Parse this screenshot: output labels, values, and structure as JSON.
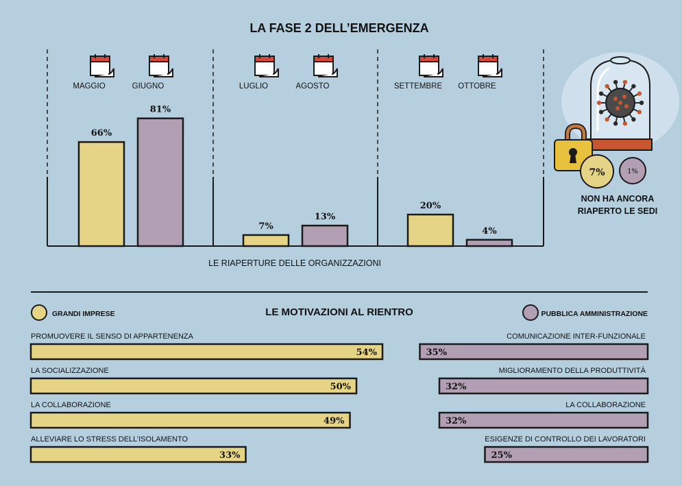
{
  "colors": {
    "background": "#b6cfdf",
    "grandi_imprese": "#e6d486",
    "pubblica_amministrazione": "#b39fb3",
    "stroke": "#1a1a1a",
    "icon_red": "#d9463a"
  },
  "icons": {
    "calendar": "calendar-icon",
    "virus": "virus-in-bell-jar-icon",
    "padlock": "padlock-icon"
  },
  "title": "LA FASE 2 DELL’EMERGENZA",
  "chart_data": [
    {
      "type": "bar",
      "title": "LA FASE 2 DELL’EMERGENZA",
      "xlabel": "LE RIAPERTURE DELLE ORGANIZZAZIONI",
      "ylabel": "",
      "ylim": [
        0,
        100
      ],
      "categories": [
        "MAGGIO",
        "GIUGNO",
        "LUGLIO",
        "AGOSTO",
        "SETTEMBRE",
        "OTTOBRE"
      ],
      "values": [
        66,
        81,
        7,
        13,
        20,
        4
      ],
      "value_labels": [
        "66%",
        "81%",
        "7%",
        "13%",
        "20%",
        "4%"
      ],
      "series_by_category": [
        "grandi_imprese",
        "pubblica_amministrazione",
        "grandi_imprese",
        "pubblica_amministrazione",
        "grandi_imprese",
        "pubblica_amministrazione"
      ]
    },
    {
      "type": "bar",
      "title": "LE MOTIVAZIONI AL RIENTRO",
      "orientation": "horizontal",
      "series": [
        {
          "name": "GRANDI IMPRESE",
          "categories": [
            "PROMUOVERE IL SENSO DI APPARTENENZA",
            "LA SOCIALIZZAZIONE",
            "LA COLLABORAZIONE",
            "ALLEVIARE LO STRESS DELL’ISOLAMENTO"
          ],
          "values": [
            54,
            50,
            49,
            33
          ],
          "value_labels": [
            "54%",
            "50%",
            "49%",
            "33%"
          ]
        },
        {
          "name": "PUBBLICA AMMINISTRAZIONE",
          "categories": [
            "COMUNICAZIONE INTER-FUNZIONALE",
            "MIGLIORAMENTO DELLA PRODUTTIVITÀ",
            "LA COLLABORAZIONE",
            "ESIGENZE DI CONTROLLO DEI LAVORATORI"
          ],
          "values": [
            35,
            32,
            32,
            25
          ],
          "value_labels": [
            "35%",
            "32%",
            "32%",
            "25%"
          ]
        }
      ]
    }
  ],
  "not_reopened": {
    "label_line1": "NON HA ANCORA",
    "label_line2": "RIAPERTO LE SEDI",
    "grandi_imprese": "7%",
    "pubblica_amministrazione": "1%",
    "values": [
      7,
      1
    ]
  },
  "motivazioni": {
    "title": "LE MOTIVAZIONI AL RIENTRO",
    "legend_left": "GRANDI IMPRESE",
    "legend_right": "PUBBLICA AMMINISTRAZIONE"
  }
}
